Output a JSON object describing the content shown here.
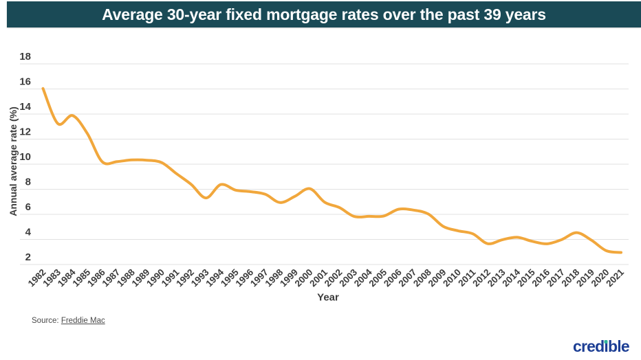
{
  "title": "Average 30-year fixed mortgage rates over the past 39 years",
  "chart_data": {
    "type": "line",
    "title": "Average 30-year fixed mortgage rates over the past 39 years",
    "x": [
      "1982",
      "1983",
      "1984",
      "1985",
      "1986",
      "1987",
      "1988",
      "1989",
      "1990",
      "1991",
      "1992",
      "1993",
      "1994",
      "1995",
      "1996",
      "1997",
      "1998",
      "1999",
      "2000",
      "2001",
      "2002",
      "2003",
      "2004",
      "2005",
      "2006",
      "2007",
      "2008",
      "2009",
      "2010",
      "2011",
      "2012",
      "2013",
      "2014",
      "2015",
      "2016",
      "2017",
      "2018",
      "2019",
      "2020",
      "2021"
    ],
    "series": [
      {
        "name": "Annual average 30-year fixed mortgage rate (%)",
        "values": [
          16.04,
          13.24,
          13.88,
          12.43,
          10.19,
          10.21,
          10.34,
          10.32,
          10.13,
          9.25,
          8.39,
          7.31,
          8.38,
          7.93,
          7.81,
          7.6,
          6.94,
          7.44,
          8.05,
          6.97,
          6.54,
          5.83,
          5.84,
          5.87,
          6.41,
          6.34,
          6.03,
          5.04,
          4.69,
          4.45,
          3.66,
          3.98,
          4.17,
          3.85,
          3.65,
          3.99,
          4.54,
          3.94,
          3.1,
          2.96
        ]
      }
    ],
    "xlabel": "Year",
    "ylabel": "Annual average rate (%)",
    "ylim": [
      2,
      18
    ],
    "yticks": [
      2,
      4,
      6,
      8,
      10,
      12,
      14,
      16,
      18
    ],
    "grid": true,
    "legend": false,
    "smooth": true,
    "line_color": "#F1A73C"
  },
  "source": {
    "prefix": "Source: ",
    "link_text": "Freddie Mac"
  },
  "logo": {
    "text": "credible",
    "part1": "cred",
    "i_stem": "ı",
    "part2": "ble"
  },
  "colors": {
    "banner": "#1A4A56",
    "title_text": "#FFFFFF",
    "gridline": "#E2E2E2",
    "tick_text": "#3C3C3C",
    "line": "#F1A73C",
    "logo_navy": "#1C3E94",
    "logo_dot_teal": "#2FB29B"
  }
}
